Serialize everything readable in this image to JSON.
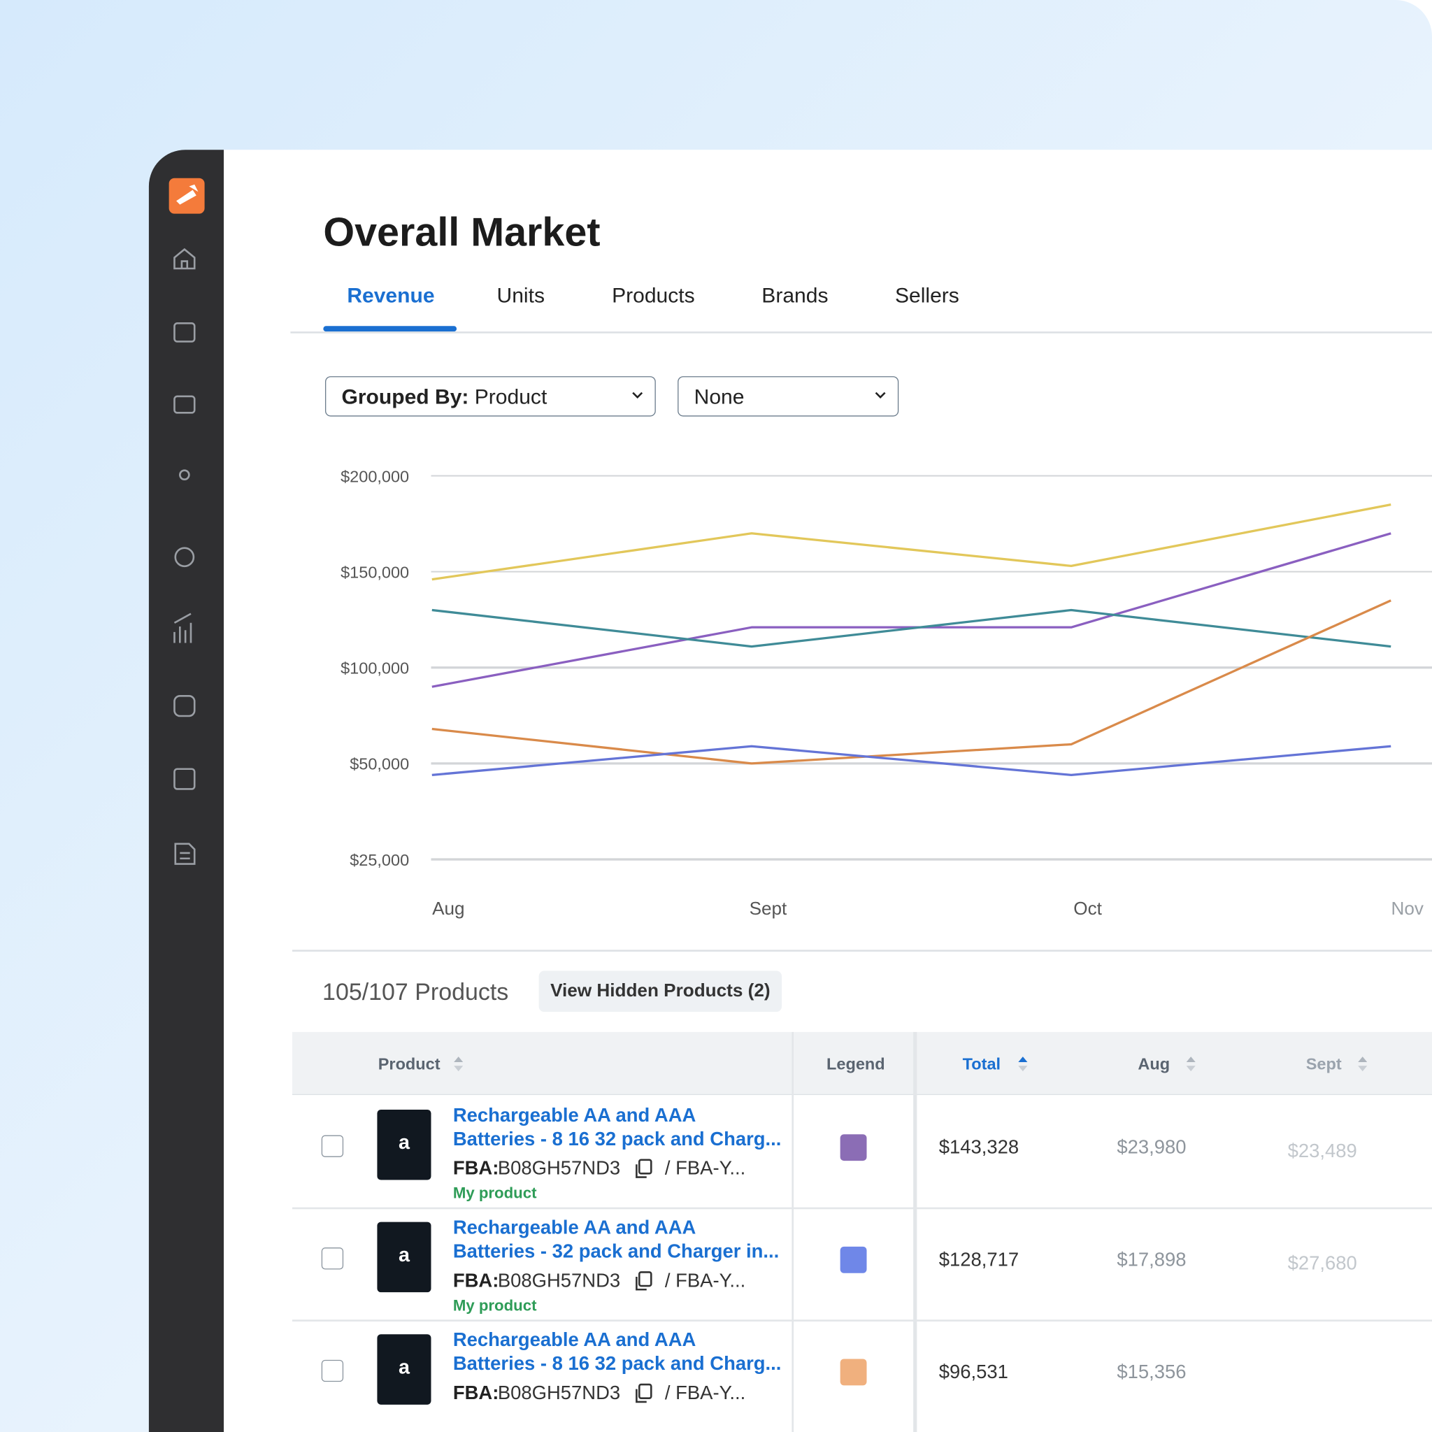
{
  "header": {
    "title": "Overall Market"
  },
  "tabs": [
    "Revenue",
    "Units",
    "Products",
    "Brands",
    "Sellers"
  ],
  "filters": {
    "group_label": "Grouped By:",
    "group_value": "Product",
    "second": "None"
  },
  "chart_data": {
    "type": "line",
    "categories": [
      "Aug",
      "Sept",
      "Oct",
      "Nov"
    ],
    "series": [
      {
        "color": "#e2c75a",
        "values": [
          146000,
          170000,
          153000,
          185000
        ]
      },
      {
        "color": "#8a5fc0",
        "values": [
          90000,
          121000,
          121000,
          170000
        ]
      },
      {
        "color": "#3f8b97",
        "values": [
          130000,
          111000,
          130000,
          111000
        ]
      },
      {
        "color": "#d98a4a",
        "values": [
          68000,
          50000,
          60000,
          135000
        ]
      },
      {
        "color": "#6474d6",
        "values": [
          47000,
          59000,
          47000,
          59000
        ]
      }
    ],
    "ylim": [
      25000,
      200000
    ],
    "yticks": [
      {
        "value": 200000,
        "label": "$200,000"
      },
      {
        "value": 150000,
        "label": "$150,000"
      },
      {
        "value": 100000,
        "label": "$100,000"
      },
      {
        "value": 50000,
        "label": "$50,000"
      },
      {
        "value": 25000,
        "label": "$25,000"
      }
    ],
    "grid": true
  },
  "products": {
    "count": "105/107 Products",
    "hidden_button": "View Hidden Products (2)"
  },
  "table": {
    "columns": [
      "Product",
      "Legend",
      "Total",
      "Aug",
      "Sept"
    ],
    "rows": [
      {
        "logo": "a",
        "title_lines": [
          "Rechargeable AA and AAA",
          "Batteries - 8 16 32 pack and Charg..."
        ],
        "fba_label": "FBA:",
        "asin": "B08GH57ND3",
        "sku": "/ FBA-Y...",
        "tag": "My product",
        "legend_color": "#8b6db5",
        "total": "$143,328",
        "aug": "$23,980",
        "sept": "$23,489"
      },
      {
        "logo": "a",
        "title_lines": [
          "Rechargeable AA and AAA",
          "Batteries - 32 pack and Charger in..."
        ],
        "fba_label": "FBA:",
        "asin": "B08GH57ND3",
        "sku": "/ FBA-Y...",
        "tag": "My product",
        "legend_color": "#6f87e8",
        "total": "$128,717",
        "aug": "$17,898",
        "sept": "$27,680"
      },
      {
        "logo": "a",
        "title_lines": [
          "Rechargeable AA and AAA",
          "Batteries - 8 16 32 pack and Charg..."
        ],
        "fba_label": "FBA:",
        "asin": "B08GH57ND3",
        "sku": "/ FBA-Y...",
        "legend_color": "#f0b07e",
        "total": "$96,531",
        "aug": "$15,356"
      }
    ]
  }
}
